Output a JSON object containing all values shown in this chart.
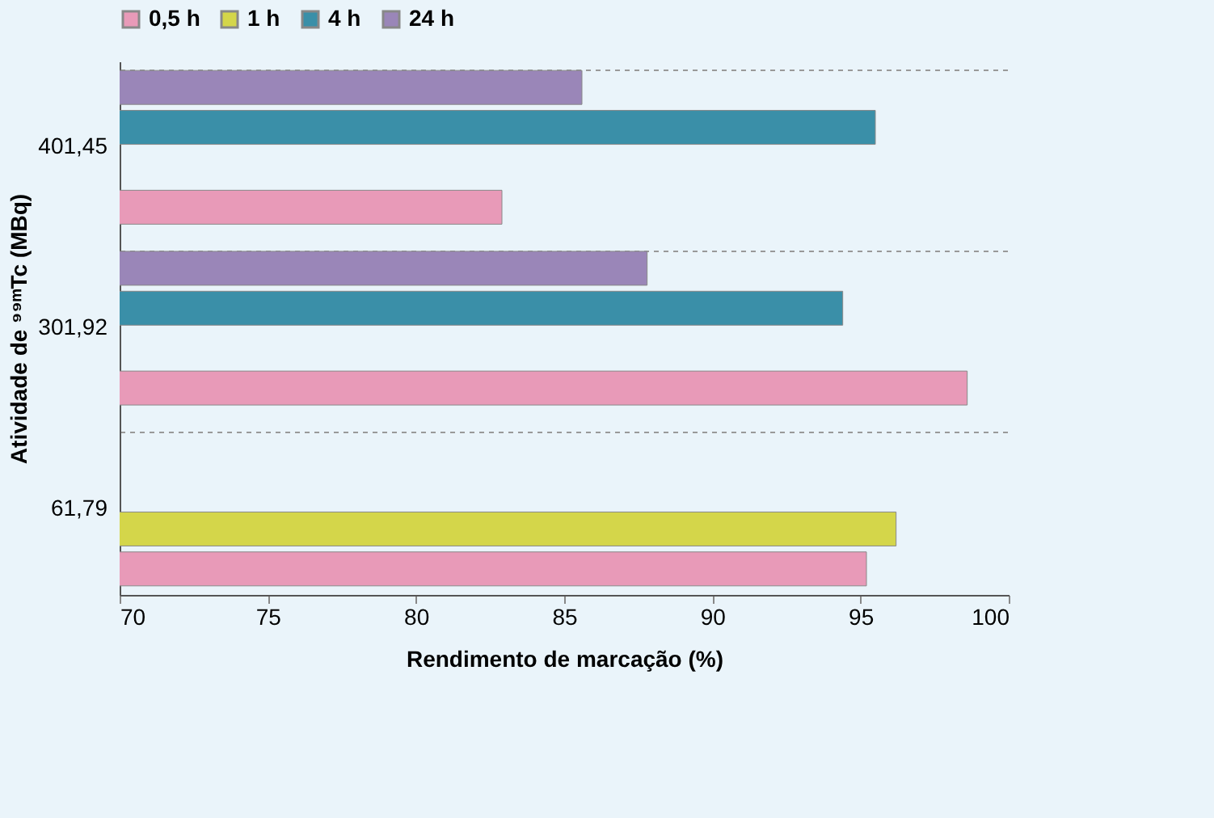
{
  "chart_data": {
    "type": "bar",
    "orientation": "horizontal",
    "xlabel": "Rendimento de marcação (%)",
    "ylabel": "Atividade de ⁹⁹ᵐTc (MBq)",
    "categories": [
      "401,45",
      "301,92",
      "61,79"
    ],
    "series": [
      {
        "name": "0,5 h",
        "color": "#e89ab8",
        "values": [
          82.9,
          98.6,
          95.2
        ]
      },
      {
        "name": "1 h",
        "color": "#d4d64a",
        "values": [
          null,
          null,
          96.2
        ]
      },
      {
        "name": "4 h",
        "color": "#3a8fa8",
        "values": [
          95.5,
          94.4,
          null
        ]
      },
      {
        "name": "24 h",
        "color": "#9a86b8",
        "values": [
          85.6,
          87.8,
          null
        ]
      }
    ],
    "xlim": [
      70,
      100
    ],
    "xticks": [
      70,
      75,
      80,
      85,
      90,
      95,
      100
    ],
    "grid": "y",
    "legend": "top"
  }
}
